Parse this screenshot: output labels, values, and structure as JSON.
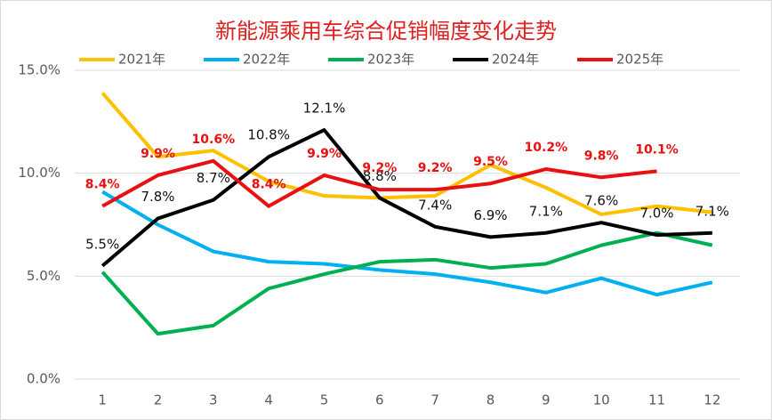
{
  "chart_data": {
    "type": "line",
    "title": "新能源乘用车综合促销幅度变化走势",
    "categories": [
      "1",
      "2",
      "3",
      "4",
      "5",
      "6",
      "7",
      "8",
      "9",
      "10",
      "11",
      "12"
    ],
    "ylim": [
      0,
      15
    ],
    "yticks": [
      {
        "value": 0,
        "label": "0.0%"
      },
      {
        "value": 5,
        "label": "5.0%"
      },
      {
        "value": 10,
        "label": "10.0%"
      },
      {
        "value": 15,
        "label": "15.0%"
      }
    ],
    "grid": true,
    "legend": "top",
    "series": [
      {
        "name": "2021年",
        "color": "#ffc000",
        "values": [
          13.9,
          10.8,
          11.1,
          9.6,
          8.9,
          8.8,
          8.9,
          10.4,
          9.3,
          8.0,
          8.4,
          8.1
        ]
      },
      {
        "name": "2022年",
        "color": "#00b0f0",
        "values": [
          9.1,
          7.5,
          6.2,
          5.7,
          5.6,
          5.3,
          5.1,
          4.7,
          4.2,
          4.9,
          4.1,
          4.7
        ]
      },
      {
        "name": "2023年",
        "color": "#00b050",
        "values": [
          5.2,
          2.2,
          2.6,
          4.4,
          5.1,
          5.7,
          5.8,
          5.4,
          5.6,
          6.5,
          7.1,
          6.5
        ]
      },
      {
        "name": "2024年",
        "color": "#000000",
        "values": [
          5.5,
          7.8,
          8.7,
          10.8,
          12.1,
          8.8,
          7.4,
          6.9,
          7.1,
          7.6,
          7.0,
          7.1
        ],
        "value_labels": [
          "5.5%",
          "7.8%",
          "8.7%",
          "10.8%",
          "12.1%",
          "8.8%",
          "7.4%",
          "6.9%",
          "7.1%",
          "7.6%",
          "7.0%",
          "7.1%"
        ]
      },
      {
        "name": "2025年",
        "color": "#e81010",
        "values": [
          8.4,
          9.9,
          10.6,
          8.4,
          9.9,
          9.2,
          9.2,
          9.5,
          10.2,
          9.8,
          10.1,
          null
        ],
        "value_labels": [
          "8.4%",
          "9.9%",
          "10.6%",
          "8.4%",
          "9.9%",
          "9.2%",
          "9.2%",
          "9.5%",
          "10.2%",
          "9.8%",
          "10.1%",
          null
        ]
      }
    ]
  }
}
